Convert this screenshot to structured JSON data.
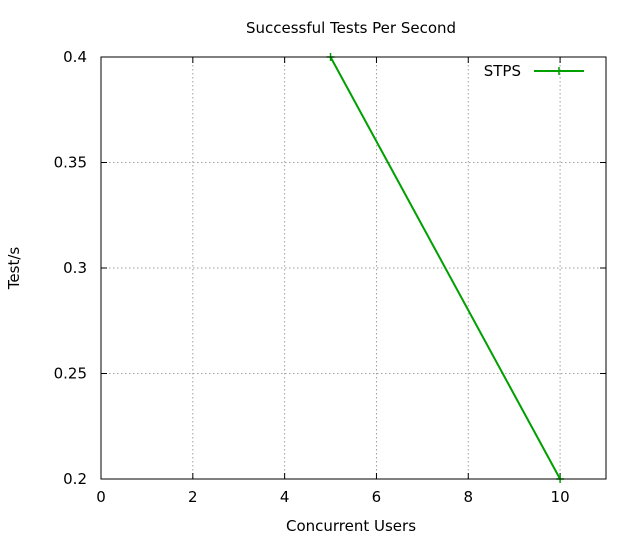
{
  "chart_data": {
    "type": "line",
    "title": "Successful Tests Per Second",
    "xlabel": "Concurrent Users",
    "ylabel": "Test/s",
    "xlim": [
      0,
      11
    ],
    "ylim": [
      0.2,
      0.4
    ],
    "x_ticks": [
      0,
      2,
      4,
      6,
      8,
      10
    ],
    "x_tick_labels": [
      "0",
      "2",
      "4",
      "6",
      "8",
      "10"
    ],
    "y_ticks": [
      0.2,
      0.25,
      0.3,
      0.35,
      0.4
    ],
    "y_tick_labels": [
      "0.2",
      "0.25",
      "0.3",
      "0.35",
      "0.4"
    ],
    "grid": true,
    "legend_position": "top-right",
    "series": [
      {
        "name": "STPS",
        "color": "#00a000",
        "marker": "plus",
        "x": [
          5,
          10
        ],
        "y": [
          0.4,
          0.2
        ]
      }
    ]
  }
}
